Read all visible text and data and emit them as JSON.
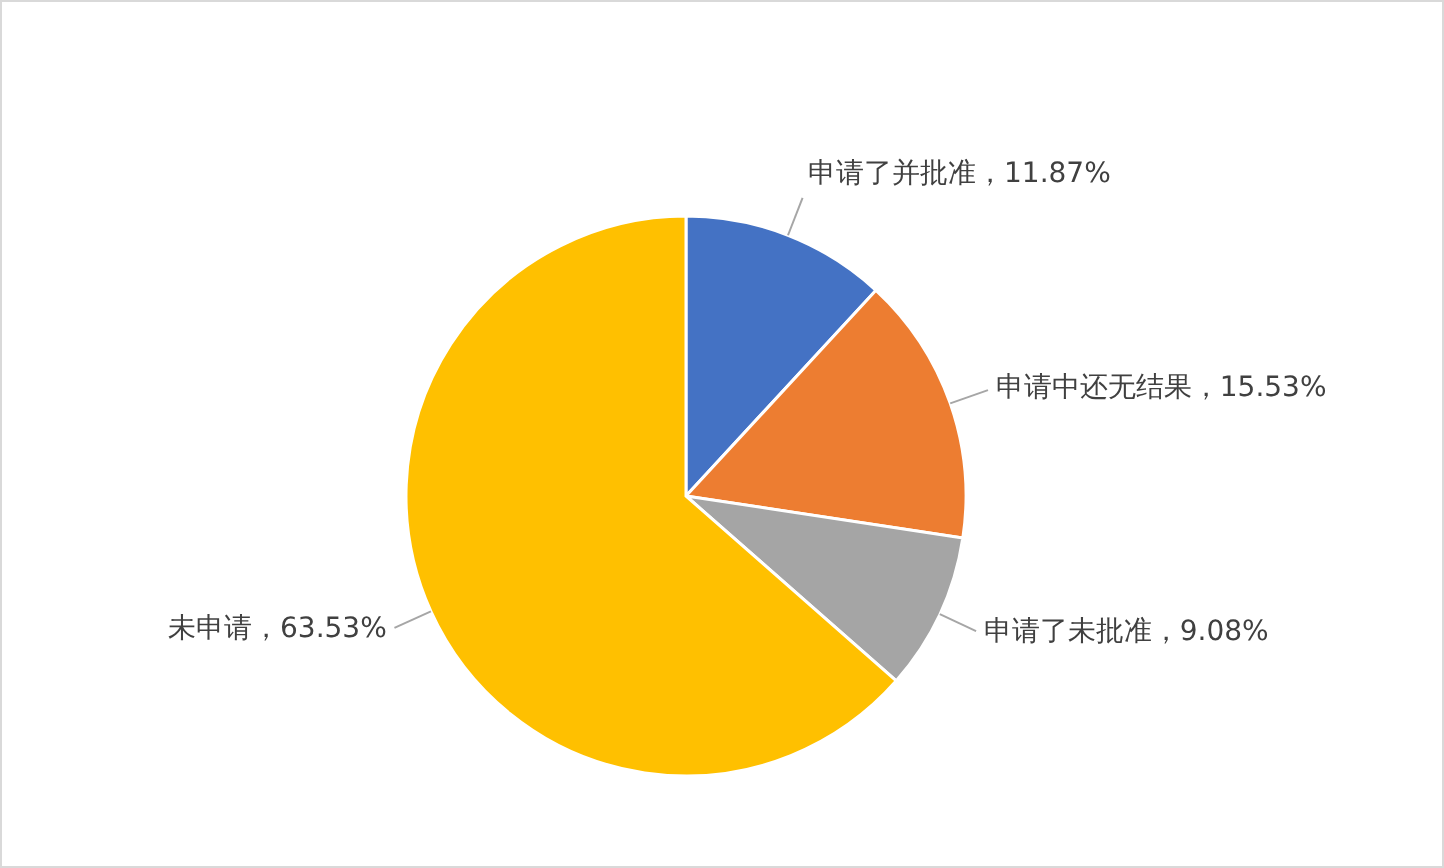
{
  "chart_data": {
    "type": "pie",
    "categories": [
      "申请了并批准",
      "申请中还无结果",
      "申请了未批准",
      "未申请"
    ],
    "values": [
      11.87,
      15.53,
      9.08,
      63.53
    ],
    "colors": [
      "#4472c4",
      "#ed7d31",
      "#a5a5a5",
      "#ffc000"
    ],
    "value_labels": [
      "11.87%",
      "15.53%",
      "9.08%",
      "63.53%"
    ],
    "legend": false
  }
}
